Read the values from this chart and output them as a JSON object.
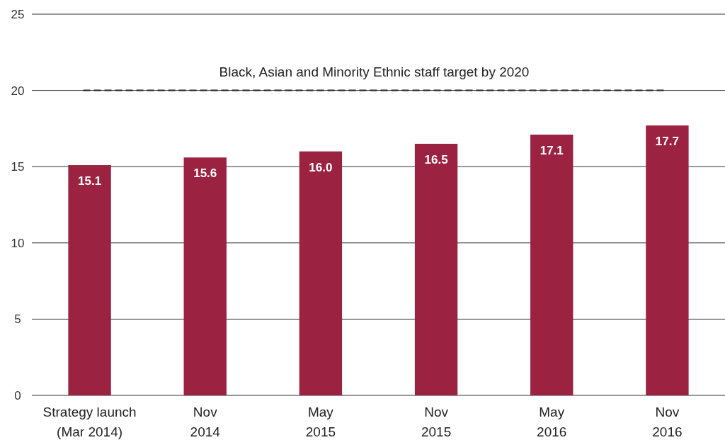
{
  "chart_data": {
    "type": "bar",
    "categories": [
      "Strategy launch\n(Mar 2014)",
      "Nov\n2014",
      "May\n2015",
      "Nov\n2015",
      "May\n2016",
      "Nov\n2016"
    ],
    "values": [
      15.1,
      15.6,
      16.0,
      16.5,
      17.1,
      17.7
    ],
    "value_labels": [
      "15.1",
      "15.6",
      "16.0",
      "16.5",
      "17.1",
      "17.7"
    ],
    "color": "#9b2240",
    "ylim": [
      0,
      25
    ],
    "yticks": [
      0,
      5,
      10,
      15,
      20,
      25
    ],
    "grid": "y",
    "ref_lines": [
      {
        "axis": "y",
        "value": 20,
        "label": "Black, Asian and Minority Ethnic staff target by 2020",
        "color": "#222222",
        "line_style": "dashed"
      }
    ]
  }
}
